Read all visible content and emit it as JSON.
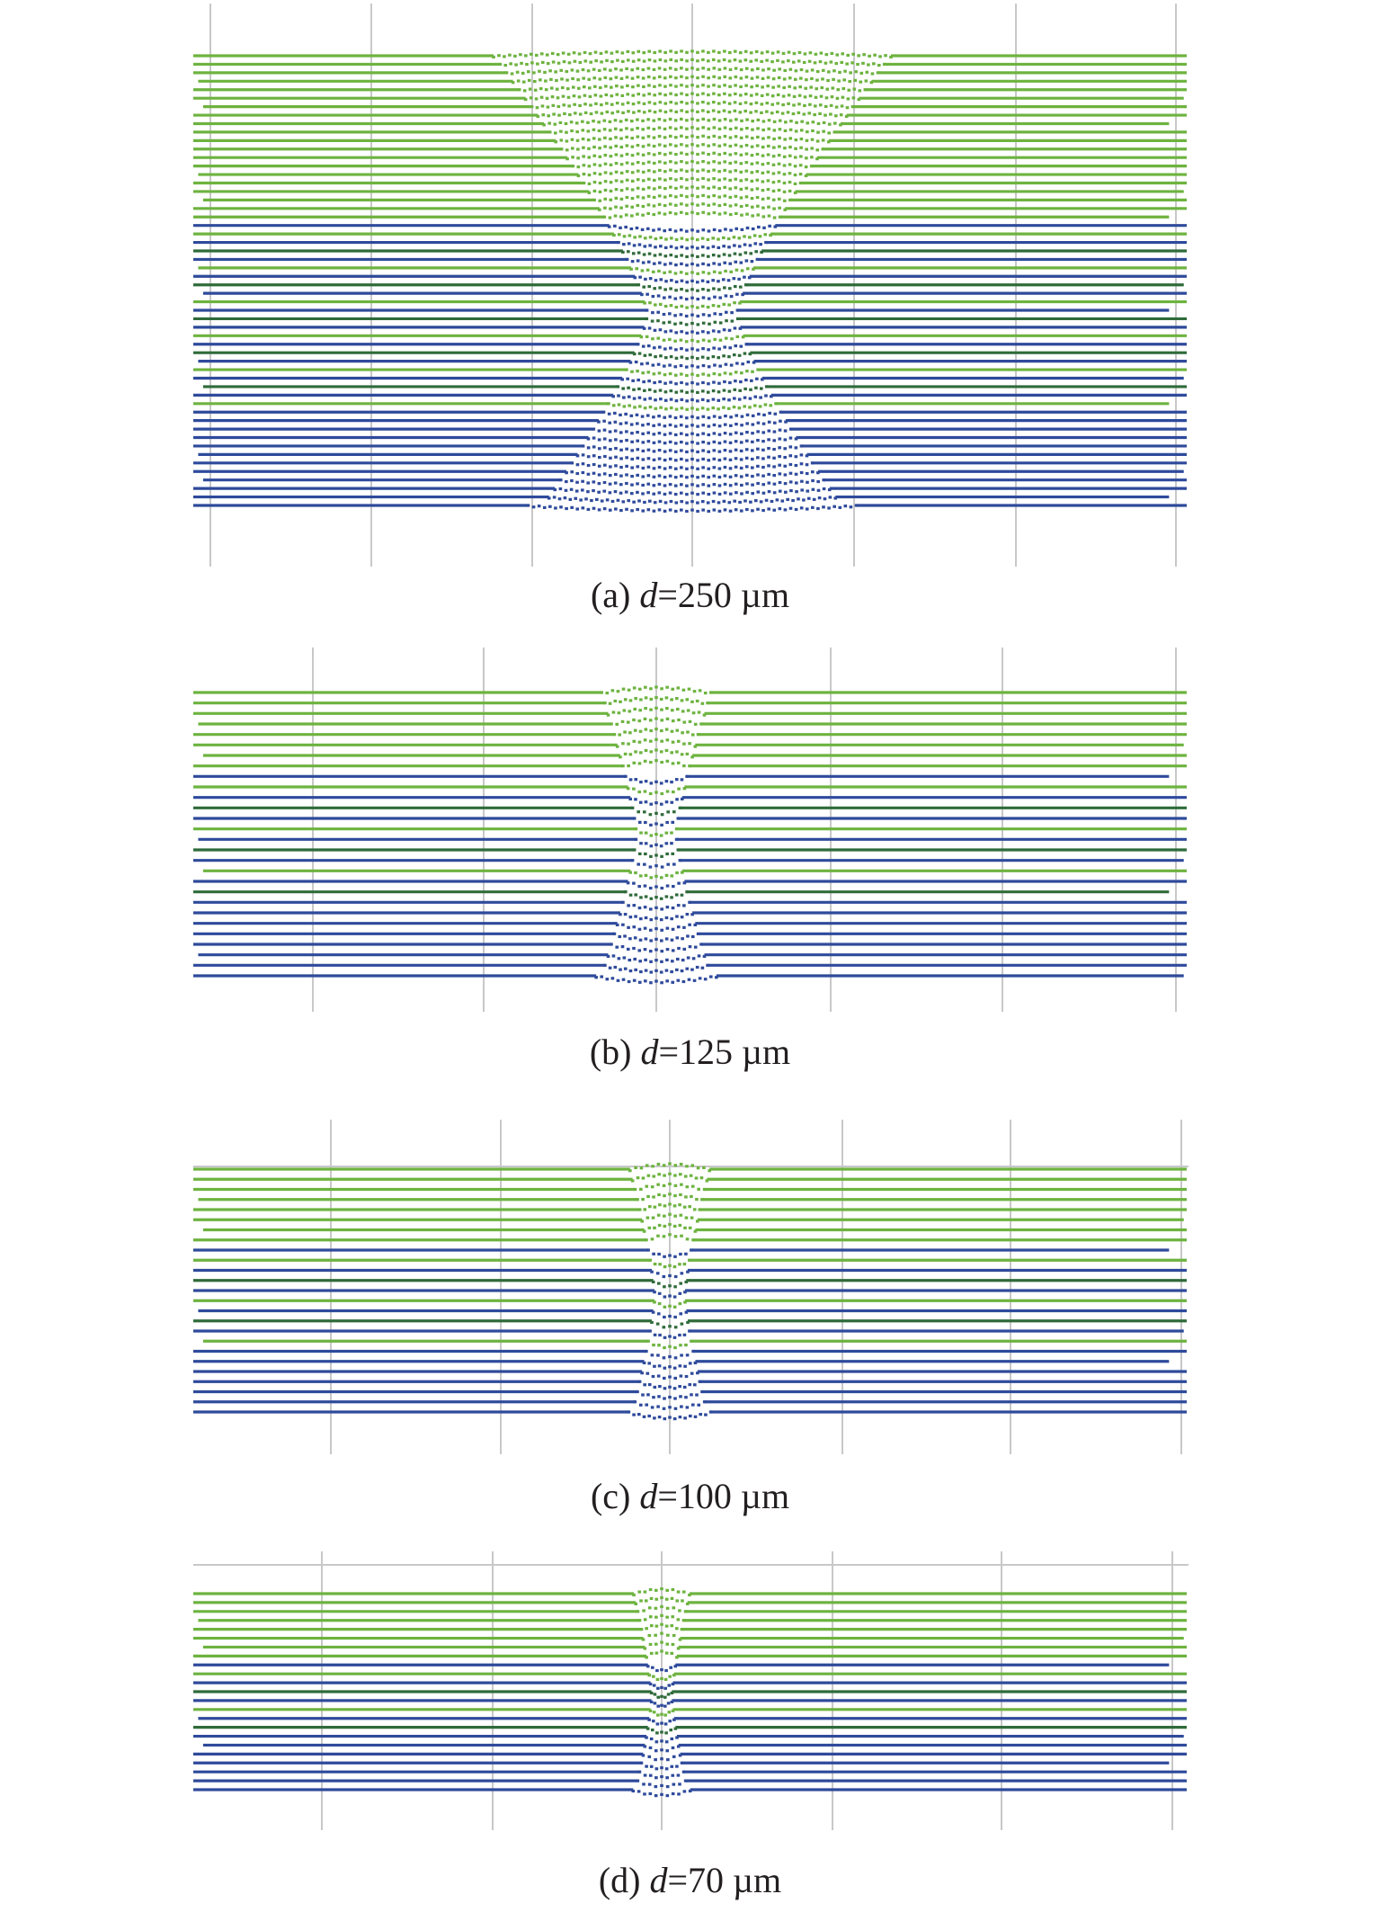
{
  "colors": {
    "green": "#6db33f",
    "blue": "#2e4a9b",
    "dark_green": "#2f6b3a",
    "grid": "#c8c8c8"
  },
  "panels": [
    {
      "id": "a",
      "caption": {
        "prefix": "(a) ",
        "var": "d",
        "suffix": "=250 µm"
      },
      "green_rows": 20,
      "mixed_rows": 22,
      "blue_rows": 12,
      "core_half_width_top": 0.2,
      "core_half_width_waist": 0.045
    },
    {
      "id": "b",
      "caption": {
        "prefix": "(b) ",
        "var": "d",
        "suffix": "=125 µm"
      },
      "green_rows": 8,
      "mixed_rows": 12,
      "blue_rows": 8,
      "core_half_width_top": 0.055,
      "core_half_width_waist": 0.02
    },
    {
      "id": "c",
      "caption": {
        "prefix": "(c) ",
        "var": "d",
        "suffix": "=100 µm"
      },
      "green_rows": 8,
      "mixed_rows": 10,
      "blue_rows": 7,
      "core_half_width_top": 0.04,
      "core_half_width_waist": 0.015
    },
    {
      "id": "d",
      "caption": {
        "prefix": "(d) ",
        "var": "d",
        "suffix": "=70 µm"
      },
      "green_rows": 8,
      "mixed_rows": 8,
      "blue_rows": 7,
      "core_half_width_top": 0.028,
      "core_half_width_waist": 0.01
    }
  ]
}
